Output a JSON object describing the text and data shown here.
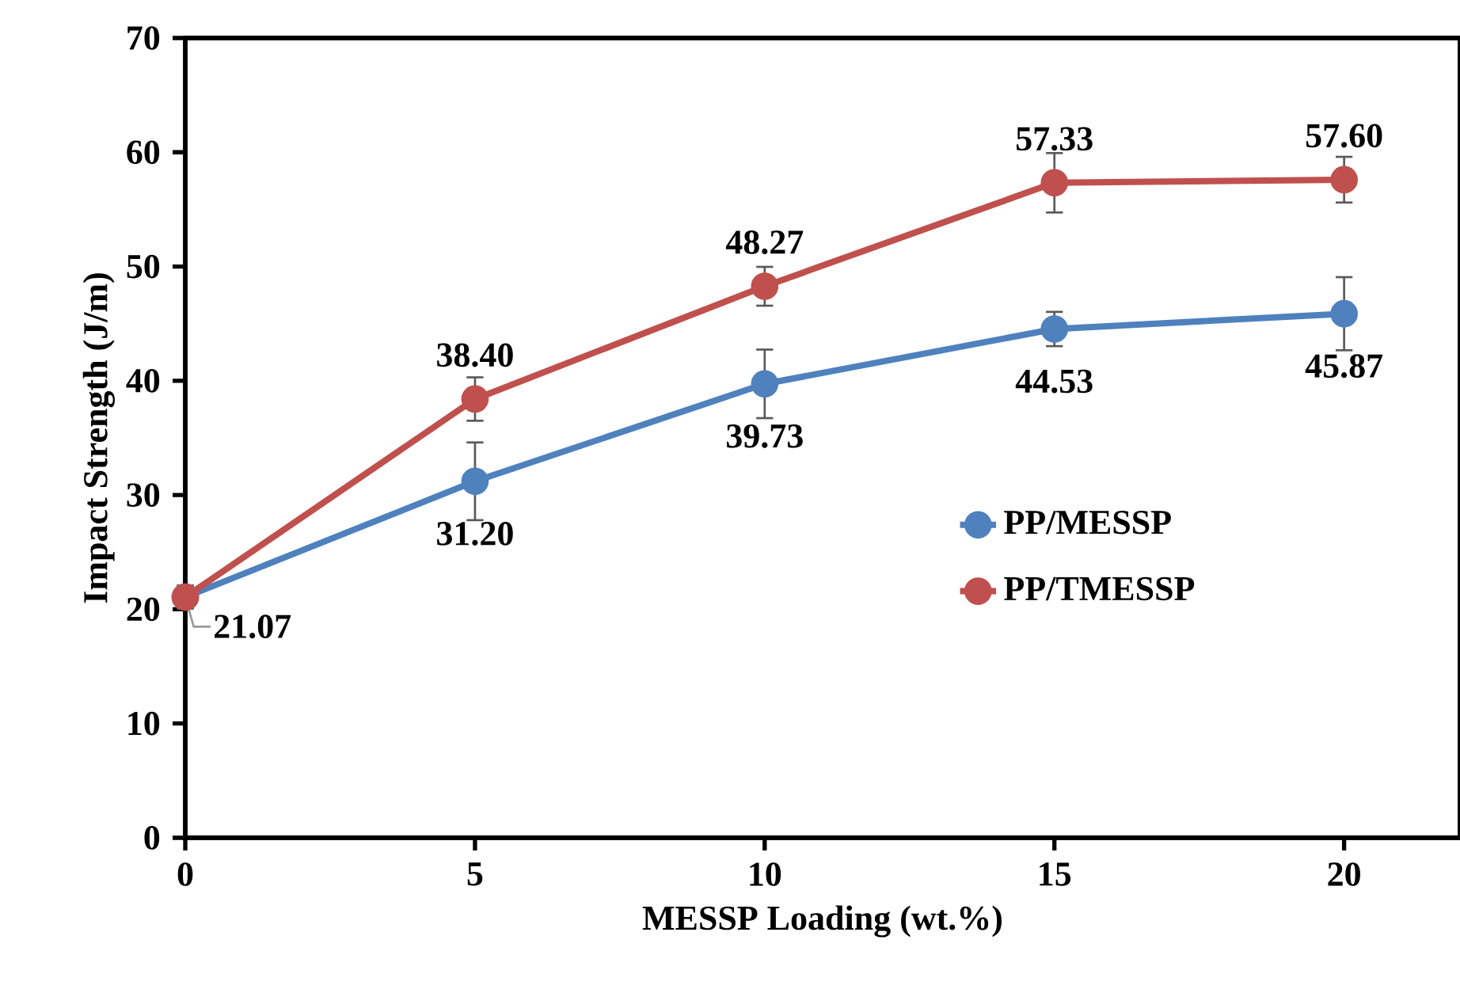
{
  "chart_data": {
    "type": "line",
    "xlabel": "MESSP Loading (wt.%)",
    "ylabel": "Impact Strength  (J/m)",
    "x": [
      0,
      5,
      10,
      15,
      20
    ],
    "series": [
      {
        "name": "PP/MESSP",
        "color": "#4f81bd",
        "values": [
          21.07,
          31.2,
          39.73,
          44.53,
          45.87
        ],
        "errors": [
          1.0,
          3.4,
          3.0,
          1.5,
          3.2
        ],
        "value_labels": [
          "21.07",
          "31.20",
          "39.73",
          "44.53",
          "45.87"
        ]
      },
      {
        "name": "PP/TMESSP",
        "color": "#c0504d",
        "values": [
          21.07,
          38.4,
          48.27,
          57.33,
          57.6
        ],
        "errors": [
          1.0,
          1.9,
          1.7,
          2.6,
          2.0
        ],
        "value_labels": [
          null,
          "38.40",
          "48.27",
          "57.33",
          "57.60"
        ]
      }
    ],
    "xlim": [
      0,
      22
    ],
    "xticks": [
      0,
      5,
      10,
      15,
      20
    ],
    "ylim": [
      0,
      70
    ],
    "yticks": [
      0,
      10,
      20,
      30,
      40,
      50,
      60,
      70
    ],
    "grid": false,
    "legend": "right",
    "marker": "circle",
    "line_style": "solid"
  }
}
